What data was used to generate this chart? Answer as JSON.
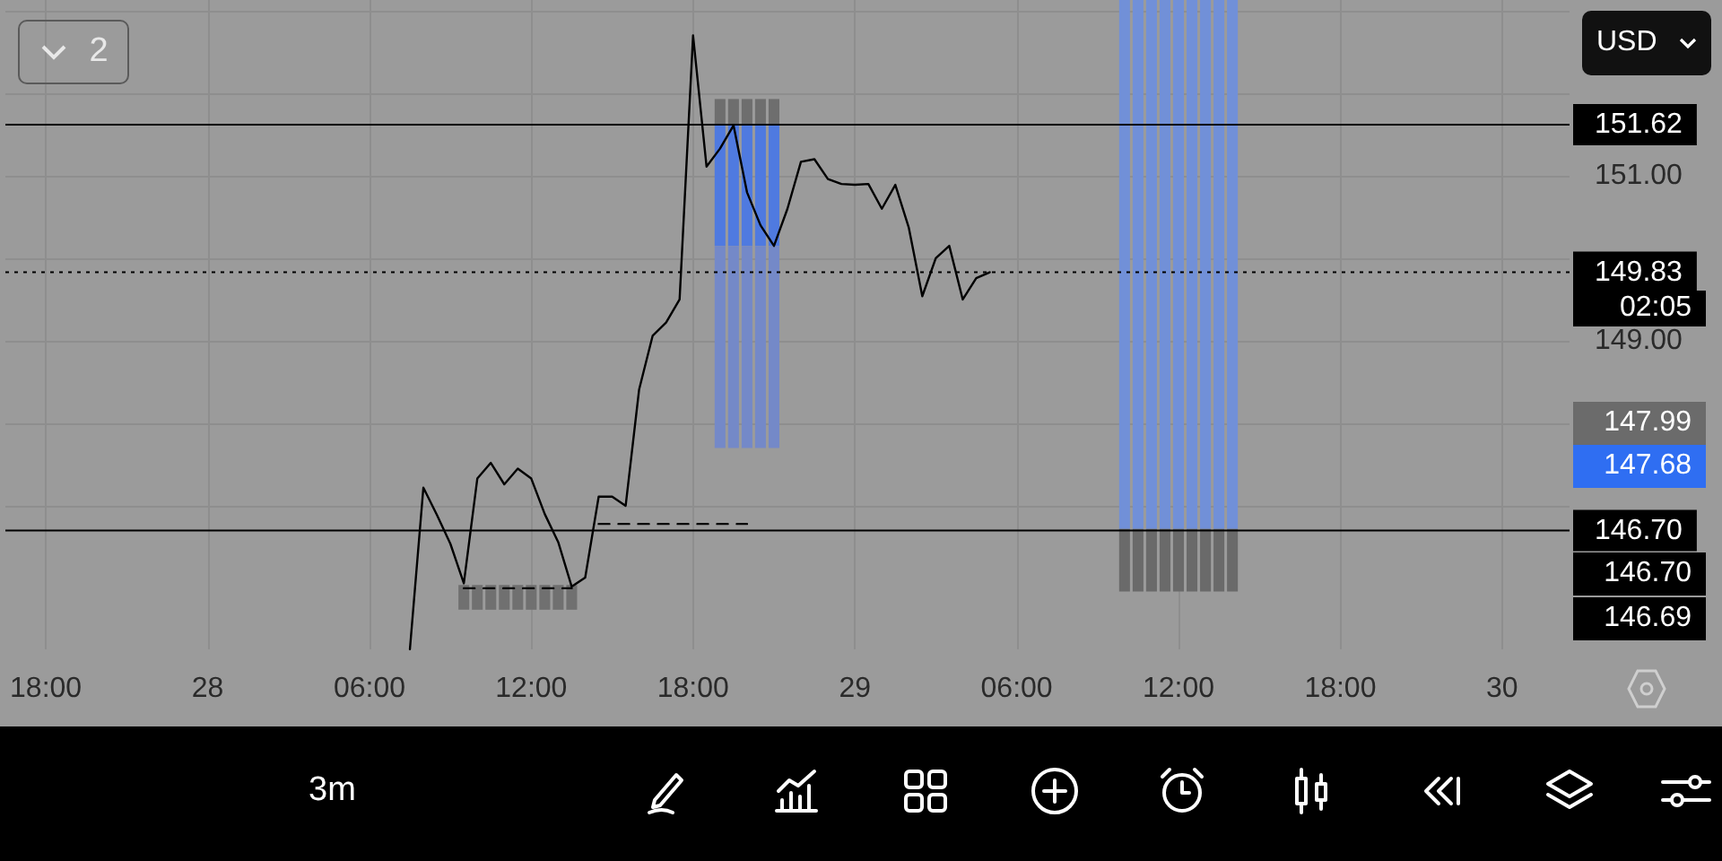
{
  "chart_data": {
    "type": "line",
    "categories": [
      null,
      null,
      null,
      "18:00",
      null,
      null,
      null,
      null,
      null,
      null,
      null,
      null,
      null,
      null,
      null,
      "28",
      null,
      null,
      null,
      null,
      null,
      null,
      null,
      null,
      null,
      null,
      null,
      "06:00",
      null,
      null,
      null,
      null,
      null,
      null,
      null,
      null,
      null,
      null,
      null,
      "12:00",
      null,
      null,
      null,
      null,
      null,
      null,
      null,
      null,
      null,
      null,
      null,
      "18:00",
      null,
      null,
      null,
      null,
      null,
      null,
      null,
      null,
      null,
      null,
      null,
      "29",
      null,
      null,
      null,
      null,
      null,
      null,
      null,
      null,
      null,
      null,
      null,
      "06:00",
      null,
      null,
      null,
      null,
      null,
      null,
      null,
      null,
      null,
      null,
      null,
      "12:00",
      null,
      null,
      null,
      null,
      null,
      null,
      null,
      null,
      null,
      null,
      null,
      "18:00",
      null,
      null,
      null,
      null,
      null,
      null,
      null,
      null,
      null,
      null,
      null,
      "30",
      null,
      null,
      null,
      null,
      null
    ],
    "series": [
      {
        "color": "#000000",
        "values": [
          null,
          null,
          null,
          null,
          null,
          null,
          null,
          null,
          null,
          null,
          null,
          null,
          null,
          null,
          null,
          null,
          null,
          null,
          null,
          null,
          null,
          null,
          null,
          null,
          null,
          null,
          null,
          null,
          null,
          null,
          145.26,
          147.22,
          146.89,
          146.54,
          146.06,
          147.33,
          147.52,
          147.26,
          147.45,
          147.33,
          146.9,
          146.56,
          146.02,
          146.13,
          147.11,
          147.11,
          147.0,
          148.41,
          149.06,
          149.22,
          149.5,
          152.7,
          151.11,
          151.33,
          151.61,
          150.8,
          150.4,
          150.15,
          150.6,
          151.17,
          151.2,
          150.96,
          150.9,
          150.89,
          150.9,
          150.6,
          150.89,
          150.37,
          149.54,
          150.0,
          150.15,
          149.5,
          149.76,
          149.83,
          null,
          null,
          null,
          null,
          null,
          null,
          null,
          null,
          null,
          null,
          null,
          null,
          null,
          null,
          null,
          null,
          null,
          null,
          null,
          null,
          null,
          null,
          null,
          null,
          null,
          null,
          null,
          null,
          null,
          null,
          null,
          null,
          null,
          null,
          null,
          null,
          null,
          null,
          null,
          null,
          null,
          null,
          null
        ]
      },
      {
        "type": "line",
        "color": "#000000",
        "line_style": "dashed",
        "values": [
          null,
          null,
          null,
          null,
          null,
          null,
          null,
          null,
          null,
          null,
          null,
          null,
          null,
          null,
          null,
          null,
          null,
          null,
          null,
          null,
          null,
          null,
          null,
          null,
          null,
          null,
          null,
          null,
          null,
          null,
          null,
          null,
          null,
          null,
          null,
          null,
          null,
          null,
          null,
          null,
          null,
          null,
          null,
          null,
          146.78,
          146.78,
          146.78,
          146.78,
          146.78,
          146.78,
          146.78,
          146.78,
          146.78,
          146.78,
          146.78,
          146.78,
          null,
          null,
          null,
          null,
          null,
          null,
          null,
          null,
          null,
          null,
          null,
          null,
          null,
          null,
          null,
          null,
          null,
          null,
          null,
          null,
          null,
          null,
          null,
          null,
          null,
          null,
          null,
          null,
          null,
          null,
          null,
          null,
          null,
          null,
          null,
          null,
          null,
          null,
          null,
          null,
          null,
          null,
          null,
          null,
          null,
          null,
          null,
          null,
          null,
          null,
          null,
          null,
          null,
          null,
          null,
          null,
          null,
          null,
          null,
          null,
          null
        ]
      },
      {
        "type": "line",
        "color": "#000000",
        "line_style": "dashed",
        "values": [
          null,
          null,
          null,
          null,
          null,
          null,
          null,
          null,
          null,
          null,
          null,
          null,
          null,
          null,
          null,
          null,
          null,
          null,
          null,
          null,
          null,
          null,
          null,
          null,
          null,
          null,
          null,
          null,
          null,
          null,
          null,
          null,
          null,
          null,
          146.0,
          146.0,
          146.0,
          146.0,
          146.0,
          146.0,
          146.0,
          146.0,
          146.0,
          null,
          null,
          null,
          null,
          null,
          null,
          null,
          null,
          null,
          null,
          null,
          null,
          null,
          null,
          null,
          null,
          null,
          null,
          null,
          null,
          null,
          null,
          null,
          null,
          null,
          null,
          null,
          null,
          null,
          null,
          null,
          null,
          null,
          null,
          null,
          null,
          null,
          null,
          null,
          null,
          null,
          null,
          null,
          null,
          null,
          null,
          null,
          null,
          null,
          null,
          null,
          null,
          null,
          null,
          null,
          null,
          null,
          null,
          null,
          null,
          null,
          null,
          null,
          null,
          null,
          null,
          null,
          null,
          null,
          null,
          null,
          null,
          null,
          null
        ]
      },
      {
        "type": "bar",
        "color": "#6e6e6e",
        "values": [
          null,
          null,
          null,
          null,
          null,
          null,
          null,
          null,
          null,
          null,
          null,
          null,
          null,
          null,
          null,
          null,
          null,
          null,
          null,
          null,
          null,
          null,
          null,
          null,
          null,
          null,
          null,
          null,
          null,
          null,
          null,
          null,
          null,
          null,
          null,
          null,
          null,
          null,
          null,
          null,
          null,
          null,
          null,
          null,
          null,
          null,
          null,
          null,
          null,
          null,
          null,
          null,
          null,
          0.32,
          0.32,
          0.32,
          0.32,
          0.32,
          null,
          null,
          null,
          null,
          null,
          null,
          null,
          null,
          null,
          null,
          null,
          null,
          null,
          null,
          null,
          null,
          null,
          null,
          null,
          null,
          null,
          null,
          null,
          null,
          null,
          null,
          null,
          null,
          null,
          null,
          null,
          null,
          null,
          null,
          null,
          null,
          null,
          null,
          null,
          null,
          null,
          null,
          null,
          null,
          null,
          null,
          null,
          null,
          null,
          null,
          null,
          null,
          null,
          null,
          null,
          null,
          null,
          null,
          null
        ],
        "base": [
          null,
          null,
          null,
          null,
          null,
          null,
          null,
          null,
          null,
          null,
          null,
          null,
          null,
          null,
          null,
          null,
          null,
          null,
          null,
          null,
          null,
          null,
          null,
          null,
          null,
          null,
          null,
          null,
          null,
          null,
          null,
          null,
          null,
          null,
          null,
          null,
          null,
          null,
          null,
          null,
          null,
          null,
          null,
          null,
          null,
          null,
          null,
          null,
          null,
          null,
          null,
          null,
          null,
          151.61,
          151.61,
          151.61,
          151.61,
          151.61,
          null,
          null,
          null,
          null,
          null,
          null,
          null,
          null,
          null,
          null,
          null,
          null,
          null,
          null,
          null,
          null,
          null,
          null,
          null,
          null,
          null,
          null,
          null,
          null,
          null,
          null,
          null,
          null,
          null,
          null,
          null,
          null,
          null,
          null,
          null,
          null,
          null,
          null,
          null,
          null,
          null,
          null,
          null,
          null,
          null,
          null,
          null,
          null,
          null,
          null,
          null,
          null,
          null,
          null,
          null,
          null,
          null,
          null,
          null
        ]
      },
      {
        "type": "bar",
        "color": "#4f7ae0",
        "values": [
          null,
          null,
          null,
          null,
          null,
          null,
          null,
          null,
          null,
          null,
          null,
          null,
          null,
          null,
          null,
          null,
          null,
          null,
          null,
          null,
          null,
          null,
          null,
          null,
          null,
          null,
          null,
          null,
          null,
          null,
          null,
          null,
          null,
          null,
          null,
          null,
          null,
          null,
          null,
          null,
          null,
          null,
          null,
          null,
          null,
          null,
          null,
          null,
          null,
          null,
          null,
          null,
          null,
          1.46,
          1.46,
          1.46,
          1.46,
          1.46,
          null,
          null,
          null,
          null,
          null,
          null,
          null,
          null,
          null,
          null,
          null,
          null,
          null,
          null,
          null,
          null,
          null,
          null,
          null,
          null,
          null,
          null,
          null,
          null,
          null,
          null,
          null,
          null,
          null,
          null,
          null,
          null,
          null,
          null,
          null,
          null,
          null,
          null,
          null,
          null,
          null,
          null,
          null,
          null,
          null,
          null,
          null,
          null,
          null,
          null,
          null,
          null,
          null,
          null,
          null,
          null,
          null,
          null,
          null
        ],
        "base": [
          null,
          null,
          null,
          null,
          null,
          null,
          null,
          null,
          null,
          null,
          null,
          null,
          null,
          null,
          null,
          null,
          null,
          null,
          null,
          null,
          null,
          null,
          null,
          null,
          null,
          null,
          null,
          null,
          null,
          null,
          null,
          null,
          null,
          null,
          null,
          null,
          null,
          null,
          null,
          null,
          null,
          null,
          null,
          null,
          null,
          null,
          null,
          null,
          null,
          null,
          null,
          null,
          null,
          150.15,
          150.15,
          150.15,
          150.15,
          150.15,
          null,
          null,
          null,
          null,
          null,
          null,
          null,
          null,
          null,
          null,
          null,
          null,
          null,
          null,
          null,
          null,
          null,
          null,
          null,
          null,
          null,
          null,
          null,
          null,
          null,
          null,
          null,
          null,
          null,
          null,
          null,
          null,
          null,
          null,
          null,
          null,
          null,
          null,
          null,
          null,
          null,
          null,
          null,
          null,
          null,
          null,
          null,
          null,
          null,
          null,
          null,
          null,
          null,
          null,
          null,
          null,
          null,
          null,
          null
        ]
      },
      {
        "type": "bar",
        "color": "#7489c8",
        "values": [
          null,
          null,
          null,
          null,
          null,
          null,
          null,
          null,
          null,
          null,
          null,
          null,
          null,
          null,
          null,
          null,
          null,
          null,
          null,
          null,
          null,
          null,
          null,
          null,
          null,
          null,
          null,
          null,
          null,
          null,
          null,
          null,
          null,
          null,
          null,
          null,
          null,
          null,
          null,
          null,
          null,
          null,
          null,
          null,
          null,
          null,
          null,
          null,
          null,
          null,
          null,
          null,
          null,
          2.45,
          2.45,
          2.45,
          2.45,
          2.45,
          null,
          null,
          null,
          null,
          null,
          null,
          null,
          null,
          null,
          null,
          null,
          null,
          null,
          null,
          null,
          null,
          null,
          null,
          null,
          null,
          null,
          null,
          null,
          null,
          null,
          null,
          null,
          null,
          null,
          null,
          null,
          null,
          null,
          null,
          null,
          null,
          null,
          null,
          null,
          null,
          null,
          null,
          null,
          null,
          null,
          null,
          null,
          null,
          null,
          null,
          null,
          null,
          null,
          null,
          null,
          null,
          null,
          null,
          null
        ],
        "base": [
          null,
          null,
          null,
          null,
          null,
          null,
          null,
          null,
          null,
          null,
          null,
          null,
          null,
          null,
          null,
          null,
          null,
          null,
          null,
          null,
          null,
          null,
          null,
          null,
          null,
          null,
          null,
          null,
          null,
          null,
          null,
          null,
          null,
          null,
          null,
          null,
          null,
          null,
          null,
          null,
          null,
          null,
          null,
          null,
          null,
          null,
          null,
          null,
          null,
          null,
          null,
          null,
          null,
          147.7,
          147.7,
          147.7,
          147.7,
          147.7,
          null,
          null,
          null,
          null,
          null,
          null,
          null,
          null,
          null,
          null,
          null,
          null,
          null,
          null,
          null,
          null,
          null,
          null,
          null,
          null,
          null,
          null,
          null,
          null,
          null,
          null,
          null,
          null,
          null,
          null,
          null,
          null,
          null,
          null,
          null,
          null,
          null,
          null,
          null,
          null,
          null,
          null,
          null,
          null,
          null,
          null,
          null,
          null,
          null,
          null,
          null,
          null,
          null,
          null,
          null,
          null,
          null,
          null,
          null
        ]
      },
      {
        "type": "bar",
        "color": "#7190d8",
        "values": [
          null,
          null,
          null,
          null,
          null,
          null,
          null,
          null,
          null,
          null,
          null,
          null,
          null,
          null,
          null,
          null,
          null,
          null,
          null,
          null,
          null,
          null,
          null,
          null,
          null,
          null,
          null,
          null,
          null,
          null,
          null,
          null,
          null,
          null,
          null,
          null,
          null,
          null,
          null,
          null,
          null,
          null,
          null,
          null,
          null,
          null,
          null,
          null,
          null,
          null,
          null,
          null,
          null,
          null,
          null,
          null,
          null,
          null,
          null,
          null,
          null,
          null,
          null,
          null,
          null,
          null,
          null,
          null,
          null,
          null,
          null,
          null,
          null,
          null,
          null,
          null,
          null,
          null,
          null,
          null,
          null,
          null,
          null,
          6.41,
          6.41,
          6.41,
          6.41,
          6.41,
          6.41,
          6.41,
          6.41,
          6.41,
          null,
          null,
          null,
          null,
          null,
          null,
          null,
          null,
          null,
          null,
          null,
          null,
          null,
          null,
          null,
          null,
          null,
          null,
          null,
          null,
          null,
          null,
          null,
          null,
          null
        ],
        "base": [
          null,
          null,
          null,
          null,
          null,
          null,
          null,
          null,
          null,
          null,
          null,
          null,
          null,
          null,
          null,
          null,
          null,
          null,
          null,
          null,
          null,
          null,
          null,
          null,
          null,
          null,
          null,
          null,
          null,
          null,
          null,
          null,
          null,
          null,
          null,
          null,
          null,
          null,
          null,
          null,
          null,
          null,
          null,
          null,
          null,
          null,
          null,
          null,
          null,
          null,
          null,
          null,
          null,
          null,
          null,
          null,
          null,
          null,
          null,
          null,
          null,
          null,
          null,
          null,
          null,
          null,
          null,
          null,
          null,
          null,
          null,
          null,
          null,
          null,
          null,
          null,
          null,
          null,
          null,
          null,
          null,
          null,
          null,
          146.72,
          146.72,
          146.72,
          146.72,
          146.72,
          146.72,
          146.72,
          146.72,
          146.72,
          null,
          null,
          null,
          null,
          null,
          null,
          null,
          null,
          null,
          null,
          null,
          null,
          null,
          null,
          null,
          null,
          null,
          null,
          null,
          null,
          null,
          null,
          null,
          null,
          null
        ]
      },
      {
        "type": "bar",
        "color": "#6a6a6a",
        "values": [
          null,
          null,
          null,
          null,
          null,
          null,
          null,
          null,
          null,
          null,
          null,
          null,
          null,
          null,
          null,
          null,
          null,
          null,
          null,
          null,
          null,
          null,
          null,
          null,
          null,
          null,
          null,
          null,
          null,
          null,
          null,
          null,
          null,
          null,
          null,
          null,
          null,
          null,
          null,
          null,
          null,
          null,
          null,
          null,
          null,
          null,
          null,
          null,
          null,
          null,
          null,
          null,
          null,
          null,
          null,
          null,
          null,
          null,
          null,
          null,
          null,
          null,
          null,
          null,
          null,
          null,
          null,
          null,
          null,
          null,
          null,
          null,
          null,
          null,
          null,
          null,
          null,
          null,
          null,
          null,
          null,
          null,
          null,
          0.76,
          0.76,
          0.76,
          0.76,
          0.76,
          0.76,
          0.76,
          0.76,
          0.76,
          null,
          null,
          null,
          null,
          null,
          null,
          null,
          null,
          null,
          null,
          null,
          null,
          null,
          null,
          null,
          null,
          null,
          null,
          null,
          null,
          null,
          null,
          null,
          null,
          null
        ],
        "base": [
          null,
          null,
          null,
          null,
          null,
          null,
          null,
          null,
          null,
          null,
          null,
          null,
          null,
          null,
          null,
          null,
          null,
          null,
          null,
          null,
          null,
          null,
          null,
          null,
          null,
          null,
          null,
          null,
          null,
          null,
          null,
          null,
          null,
          null,
          null,
          null,
          null,
          null,
          null,
          null,
          null,
          null,
          null,
          null,
          null,
          null,
          null,
          null,
          null,
          null,
          null,
          null,
          null,
          null,
          null,
          null,
          null,
          null,
          null,
          null,
          null,
          null,
          null,
          null,
          null,
          null,
          null,
          null,
          null,
          null,
          null,
          null,
          null,
          null,
          null,
          null,
          null,
          null,
          null,
          null,
          null,
          null,
          null,
          145.96,
          145.96,
          145.96,
          145.96,
          145.96,
          145.96,
          145.96,
          145.96,
          145.96,
          null,
          null,
          null,
          null,
          null,
          null,
          null,
          null,
          null,
          null,
          null,
          null,
          null,
          null,
          null,
          null,
          null,
          null,
          null,
          null,
          null,
          null,
          null,
          null,
          null
        ]
      },
      {
        "type": "bar",
        "color": "#707070",
        "values": [
          null,
          null,
          null,
          null,
          null,
          null,
          null,
          null,
          null,
          null,
          null,
          null,
          null,
          null,
          null,
          null,
          null,
          null,
          null,
          null,
          null,
          null,
          null,
          null,
          null,
          null,
          null,
          null,
          null,
          null,
          null,
          null,
          null,
          null,
          0.3,
          0.3,
          0.3,
          0.3,
          0.3,
          0.3,
          0.3,
          0.3,
          0.3,
          null,
          null,
          null,
          null,
          null,
          null,
          null,
          null,
          null,
          null,
          null,
          null,
          null,
          null,
          null,
          null,
          null,
          null,
          null,
          null,
          null,
          null,
          null,
          null,
          null,
          null,
          null,
          null,
          null,
          null,
          null,
          null,
          null,
          null,
          null,
          null,
          null,
          null,
          null,
          null,
          null,
          null,
          null,
          null,
          null,
          null,
          null,
          null,
          null,
          null,
          null,
          null,
          null,
          null,
          null,
          null,
          null,
          null,
          null,
          null,
          null,
          null,
          null,
          null,
          null,
          null,
          null,
          null,
          null,
          null,
          null,
          null,
          null,
          null
        ],
        "base": [
          null,
          null,
          null,
          null,
          null,
          null,
          null,
          null,
          null,
          null,
          null,
          null,
          null,
          null,
          null,
          null,
          null,
          null,
          null,
          null,
          null,
          null,
          null,
          null,
          null,
          null,
          null,
          null,
          null,
          null,
          null,
          null,
          null,
          null,
          145.74,
          145.74,
          145.74,
          145.74,
          145.74,
          145.74,
          145.74,
          145.74,
          145.74,
          null,
          null,
          null,
          null,
          null,
          null,
          null,
          null,
          null,
          null,
          null,
          null,
          null,
          null,
          null,
          null,
          null,
          null,
          null,
          null,
          null,
          null,
          null,
          null,
          null,
          null,
          null,
          null,
          null,
          null,
          null,
          null,
          null,
          null,
          null,
          null,
          null,
          null,
          null,
          null,
          null,
          null,
          null,
          null,
          null,
          null,
          null,
          null,
          null,
          null,
          null,
          null,
          null,
          null,
          null,
          null,
          null,
          null,
          null,
          null,
          null,
          null,
          null,
          null,
          null,
          null,
          null,
          null,
          null,
          null,
          null,
          null,
          null,
          null
        ]
      }
    ],
    "ylim": [
      145.26,
      153.13
    ],
    "yticks": [
      {
        "value": 147,
        "label": null
      },
      {
        "value": 148,
        "label": null
      },
      {
        "value": 149,
        "label": "149.00"
      },
      {
        "value": 150,
        "label": null
      },
      {
        "value": 151,
        "label": "151.00"
      },
      {
        "value": 152,
        "label": null
      },
      {
        "value": 153,
        "label": null
      }
    ],
    "grid": true,
    "ref_lines": [
      {
        "axis": "y",
        "value": 151.62,
        "label": "151.62",
        "color": "#000000"
      },
      {
        "axis": "y",
        "value": 149.83,
        "label": "149.83",
        "color": "#000000",
        "line_style": "dotted"
      },
      {
        "axis": "y",
        "value": 146.7,
        "label": "146.70",
        "color": "#000000"
      }
    ],
    "annotations": [
      "USD",
      "2",
      "3m",
      "02:05",
      "147.99",
      "147.68",
      "146.70",
      "146.69"
    ]
  }
}
